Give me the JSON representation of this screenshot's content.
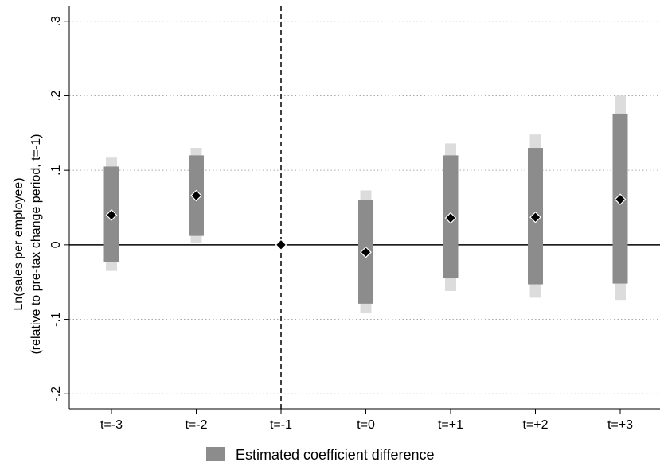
{
  "chart_data": {
    "type": "scatter",
    "categories": [
      "t=-3",
      "t=-2",
      "t=-1",
      "t=0",
      "t=+1",
      "t=+2",
      "t=+3"
    ],
    "series": [
      {
        "name": "Estimated coefficient difference",
        "estimate": [
          0.04,
          0.066,
          0.0,
          -0.01,
          0.036,
          0.037,
          0.061
        ],
        "ci_inner_low": [
          -0.023,
          0.012,
          0.0,
          -0.079,
          -0.045,
          -0.053,
          -0.052
        ],
        "ci_inner_high": [
          0.105,
          0.12,
          0.0,
          0.06,
          0.12,
          0.13,
          0.176
        ],
        "ci_outer_low": [
          -0.035,
          0.003,
          0.0,
          -0.092,
          -0.062,
          -0.071,
          -0.074
        ],
        "ci_outer_high": [
          0.117,
          0.13,
          0.0,
          0.073,
          0.136,
          0.148,
          0.2
        ]
      }
    ],
    "ylabel_line1": "Ln(sales per employee)",
    "ylabel_line2": "(relative to pre-tax change period, t=-1)",
    "ylim": [
      -0.22,
      0.32
    ],
    "yticks": [
      -0.2,
      -0.1,
      0,
      0.1,
      0.2,
      0.3
    ],
    "ytick_labels": [
      "-.2",
      "-.1",
      "0",
      ".1",
      ".2",
      ".3"
    ],
    "reference_line_category": "t=-1",
    "grid": true,
    "legend_position": "bottom",
    "colors": {
      "inner_bar": "#8c8c8c",
      "outer_bar": "#dcdcdc",
      "marker": "#000000",
      "marker_outline": "#ffffff",
      "grid": "#aaaaaa",
      "axis": "#000000"
    }
  }
}
